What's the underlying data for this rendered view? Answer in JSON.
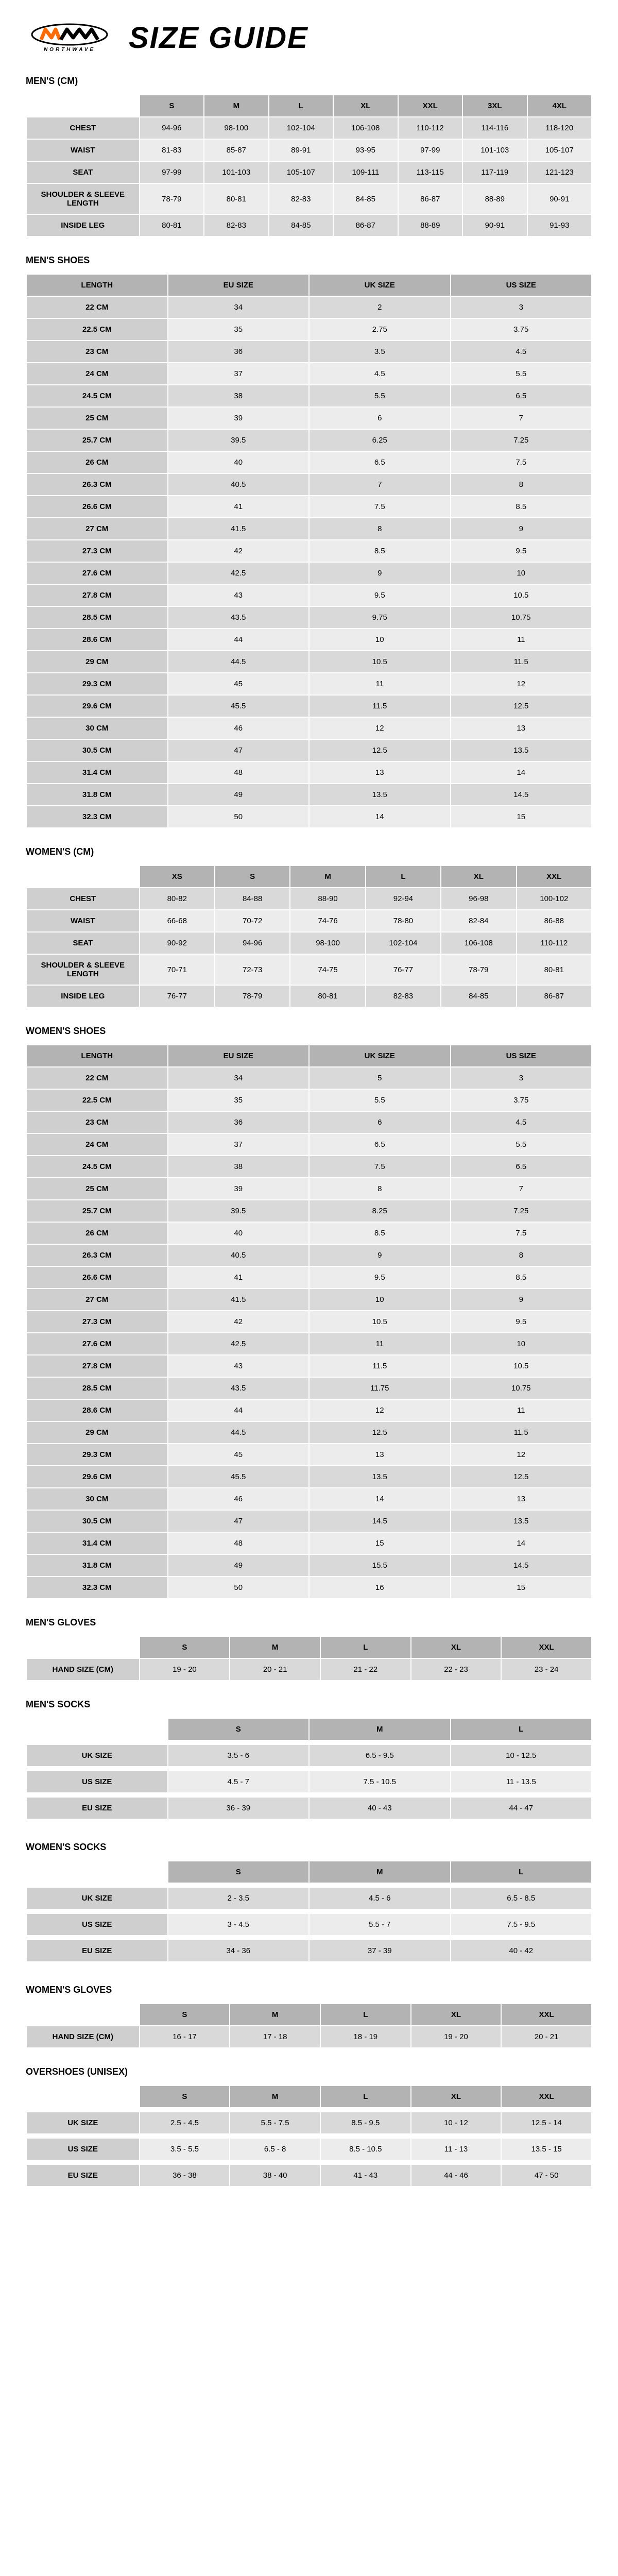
{
  "brand_sub": "NORTHWAVE",
  "title": "SIZE GUIDE",
  "logo_colors": {
    "orange": "#ff6b00",
    "black": "#000000"
  },
  "sections": [
    {
      "title": "MEN'S (CM)",
      "headers": [
        "",
        "S",
        "M",
        "L",
        "XL",
        "XXL",
        "3XL",
        "4XL"
      ],
      "row_labels": [
        "CHEST",
        "WAIST",
        "SEAT",
        "SHOULDER & SLEEVE LENGTH",
        "INSIDE LEG"
      ],
      "rows": [
        [
          "94-96",
          "98-100",
          "102-104",
          "106-108",
          "110-112",
          "114-116",
          "118-120"
        ],
        [
          "81-83",
          "85-87",
          "89-91",
          "93-95",
          "97-99",
          "101-103",
          "105-107"
        ],
        [
          "97-99",
          "101-103",
          "105-107",
          "109-111",
          "113-115",
          "117-119",
          "121-123"
        ],
        [
          "78-79",
          "80-81",
          "82-83",
          "84-85",
          "86-87",
          "88-89",
          "90-91"
        ],
        [
          "80-81",
          "82-83",
          "84-85",
          "86-87",
          "88-89",
          "90-91",
          "91-93"
        ]
      ],
      "first_col_wide": true
    },
    {
      "title": "MEN'S SHOES",
      "headers": [
        "LENGTH",
        "EU SIZE",
        "UK SIZE",
        "US SIZE"
      ],
      "row_labels": [
        "22 CM",
        "22.5 CM",
        "23 CM",
        "24 CM",
        "24.5 CM",
        "25 CM",
        "25.7 CM",
        "26 CM",
        "26.3 CM",
        "26.6 CM",
        "27 CM",
        "27.3 CM",
        "27.6 CM",
        "27.8 CM",
        "28.5 CM",
        "28.6 CM",
        "29 CM",
        "29.3 CM",
        "29.6 CM",
        "30 CM",
        "30.5 CM",
        "31.4 CM",
        "31.8 CM",
        "32.3 CM"
      ],
      "rows": [
        [
          "34",
          "2",
          "3"
        ],
        [
          "35",
          "2.75",
          "3.75"
        ],
        [
          "36",
          "3.5",
          "4.5"
        ],
        [
          "37",
          "4.5",
          "5.5"
        ],
        [
          "38",
          "5.5",
          "6.5"
        ],
        [
          "39",
          "6",
          "7"
        ],
        [
          "39.5",
          "6.25",
          "7.25"
        ],
        [
          "40",
          "6.5",
          "7.5"
        ],
        [
          "40.5",
          "7",
          "8"
        ],
        [
          "41",
          "7.5",
          "8.5"
        ],
        [
          "41.5",
          "8",
          "9"
        ],
        [
          "42",
          "8.5",
          "9.5"
        ],
        [
          "42.5",
          "9",
          "10"
        ],
        [
          "43",
          "9.5",
          "10.5"
        ],
        [
          "43.5",
          "9.75",
          "10.75"
        ],
        [
          "44",
          "10",
          "11"
        ],
        [
          "44.5",
          "10.5",
          "11.5"
        ],
        [
          "45",
          "11",
          "12"
        ],
        [
          "45.5",
          "11.5",
          "12.5"
        ],
        [
          "46",
          "12",
          "13"
        ],
        [
          "47",
          "12.5",
          "13.5"
        ],
        [
          "48",
          "13",
          "14"
        ],
        [
          "49",
          "13.5",
          "14.5"
        ],
        [
          "50",
          "14",
          "15"
        ]
      ],
      "first_col_wide": false
    },
    {
      "title": "WOMEN'S (CM)",
      "headers": [
        "",
        "XS",
        "S",
        "M",
        "L",
        "XL",
        "XXL"
      ],
      "row_labels": [
        "CHEST",
        "WAIST",
        "SEAT",
        "SHOULDER & SLEEVE LENGTH",
        "INSIDE LEG"
      ],
      "rows": [
        [
          "80-82",
          "84-88",
          "88-90",
          "92-94",
          "96-98",
          "100-102"
        ],
        [
          "66-68",
          "70-72",
          "74-76",
          "78-80",
          "82-84",
          "86-88"
        ],
        [
          "90-92",
          "94-96",
          "98-100",
          "102-104",
          "106-108",
          "110-112"
        ],
        [
          "70-71",
          "72-73",
          "74-75",
          "76-77",
          "78-79",
          "80-81"
        ],
        [
          "76-77",
          "78-79",
          "80-81",
          "82-83",
          "84-85",
          "86-87"
        ]
      ],
      "first_col_wide": true
    },
    {
      "title": "WOMEN'S SHOES",
      "headers": [
        "LENGTH",
        "EU SIZE",
        "UK SIZE",
        "US SIZE"
      ],
      "row_labels": [
        "22 CM",
        "22.5 CM",
        "23 CM",
        "24 CM",
        "24.5 CM",
        "25 CM",
        "25.7 CM",
        "26 CM",
        "26.3 CM",
        "26.6 CM",
        "27 CM",
        "27.3 CM",
        "27.6 CM",
        "27.8 CM",
        "28.5 CM",
        "28.6 CM",
        "29 CM",
        "29.3 CM",
        "29.6 CM",
        "30 CM",
        "30.5 CM",
        "31.4 CM",
        "31.8 CM",
        "32.3 CM"
      ],
      "rows": [
        [
          "34",
          "5",
          "3"
        ],
        [
          "35",
          "5.5",
          "3.75"
        ],
        [
          "36",
          "6",
          "4.5"
        ],
        [
          "37",
          "6.5",
          "5.5"
        ],
        [
          "38",
          "7.5",
          "6.5"
        ],
        [
          "39",
          "8",
          "7"
        ],
        [
          "39.5",
          "8.25",
          "7.25"
        ],
        [
          "40",
          "8.5",
          "7.5"
        ],
        [
          "40.5",
          "9",
          "8"
        ],
        [
          "41",
          "9.5",
          "8.5"
        ],
        [
          "41.5",
          "10",
          "9"
        ],
        [
          "42",
          "10.5",
          "9.5"
        ],
        [
          "42.5",
          "11",
          "10"
        ],
        [
          "43",
          "11.5",
          "10.5"
        ],
        [
          "43.5",
          "11.75",
          "10.75"
        ],
        [
          "44",
          "12",
          "11"
        ],
        [
          "44.5",
          "12.5",
          "11.5"
        ],
        [
          "45",
          "13",
          "12"
        ],
        [
          "45.5",
          "13.5",
          "12.5"
        ],
        [
          "46",
          "14",
          "13"
        ],
        [
          "47",
          "14.5",
          "13.5"
        ],
        [
          "48",
          "15",
          "14"
        ],
        [
          "49",
          "15.5",
          "14.5"
        ],
        [
          "50",
          "16",
          "15"
        ]
      ],
      "first_col_wide": false
    },
    {
      "title": "MEN'S GLOVES",
      "headers": [
        "",
        "S",
        "M",
        "L",
        "XL",
        "XXL"
      ],
      "row_labels": [
        "HAND SIZE (CM)"
      ],
      "rows": [
        [
          "19 - 20",
          "20 - 21",
          "21 - 22",
          "22 - 23",
          "23 - 24"
        ]
      ],
      "first_col_wide": true
    },
    {
      "title": "MEN'S SOCKS",
      "headers": [
        "",
        "S",
        "M",
        "L"
      ],
      "row_labels": [
        "UK SIZE",
        "US SIZE",
        "EU SIZE"
      ],
      "rows": [
        [
          "3.5 - 6",
          "6.5 - 9.5",
          "10 - 12.5"
        ],
        [
          "4.5 - 7",
          "7.5 - 10.5",
          "11 - 13.5"
        ],
        [
          "36 - 39",
          "40 - 43",
          "44 - 47"
        ]
      ],
      "first_col_wide": true,
      "spaced": true
    },
    {
      "title": "WOMEN'S SOCKS",
      "headers": [
        "",
        "S",
        "M",
        "L"
      ],
      "row_labels": [
        "UK SIZE",
        "US SIZE",
        "EU SIZE"
      ],
      "rows": [
        [
          "2 - 3.5",
          "4.5 - 6",
          "6.5 - 8.5"
        ],
        [
          "3 - 4.5",
          "5.5 - 7",
          "7.5 - 9.5"
        ],
        [
          "34 - 36",
          "37 - 39",
          "40 - 42"
        ]
      ],
      "first_col_wide": true,
      "spaced": true
    },
    {
      "title": "WOMEN'S GLOVES",
      "headers": [
        "",
        "S",
        "M",
        "L",
        "XL",
        "XXL"
      ],
      "row_labels": [
        "HAND SIZE (CM)"
      ],
      "rows": [
        [
          "16 - 17",
          "17 - 18",
          "18 - 19",
          "19 - 20",
          "20 - 21"
        ]
      ],
      "first_col_wide": true
    },
    {
      "title": "OVERSHOES (UNISEX)",
      "headers": [
        "",
        "S",
        "M",
        "L",
        "XL",
        "XXL"
      ],
      "row_labels": [
        "UK SIZE",
        "US SIZE",
        "EU SIZE"
      ],
      "rows": [
        [
          "2.5 - 4.5",
          "5.5 - 7.5",
          "8.5 - 9.5",
          "10 - 12",
          "12.5 - 14"
        ],
        [
          "3.5 - 5.5",
          "6.5 - 8",
          "8.5 - 10.5",
          "11 - 13",
          "13.5 - 15"
        ],
        [
          "36 - 38",
          "38 - 40",
          "41 - 43",
          "44 - 46",
          "47 - 50"
        ]
      ],
      "first_col_wide": true,
      "spaced": true
    }
  ],
  "colors": {
    "header_bg": "#b3b3b3",
    "row_odd": "#d9d9d9",
    "row_even": "#ececec",
    "rowh_bg": "#cfcfcf"
  },
  "fonts": {
    "title_pt": 58,
    "section_pt": 18,
    "cell_pt": 15
  }
}
